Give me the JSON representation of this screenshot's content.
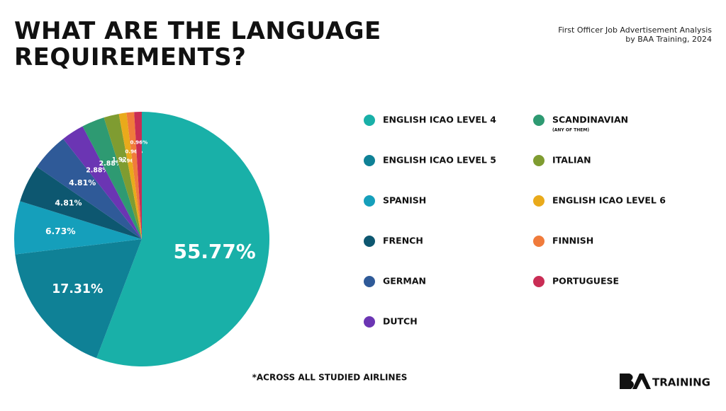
{
  "chart_data": {
    "type": "pie",
    "title": "WHAT ARE THE LANGUAGE REQUIREMENTS?",
    "source": [
      "First Officer Job Advertisement Analysis",
      "by BAA Training, 2024"
    ],
    "categories": [
      "ENGLISH ICAO LEVEL 4",
      "ENGLISH ICAO LEVEL 5",
      "SPANISH",
      "FRENCH",
      "GERMAN",
      "DUTCH",
      "SCANDINAVIAN",
      "ITALIAN",
      "ENGLISH ICAO LEVEL 6",
      "FINNISH",
      "PORTUGUESE"
    ],
    "legend_note": "(ANY OF THEM)",
    "values": [
      55.77,
      17.31,
      6.73,
      4.81,
      4.81,
      2.88,
      2.88,
      1.92,
      0.96,
      0.96,
      0.96
    ],
    "value_labels": [
      "55.77%",
      "17.31%",
      "6.73%",
      "4.81%",
      "4.81%",
      "2.88%",
      "2.88%",
      "1.92%",
      "0.96%",
      "0.96%",
      "0.96%"
    ],
    "colors": [
      "#19b0a8",
      "#0f8196",
      "#159fbb",
      "#0d5770",
      "#2f5a98",
      "#6b35b3",
      "#2e9a72",
      "#7f9c31",
      "#e9aa1b",
      "#f07b3b",
      "#c92d55"
    ],
    "footnote": "*ACROSS ALL STUDIED AIRLINES",
    "brand": "TRAINING"
  }
}
